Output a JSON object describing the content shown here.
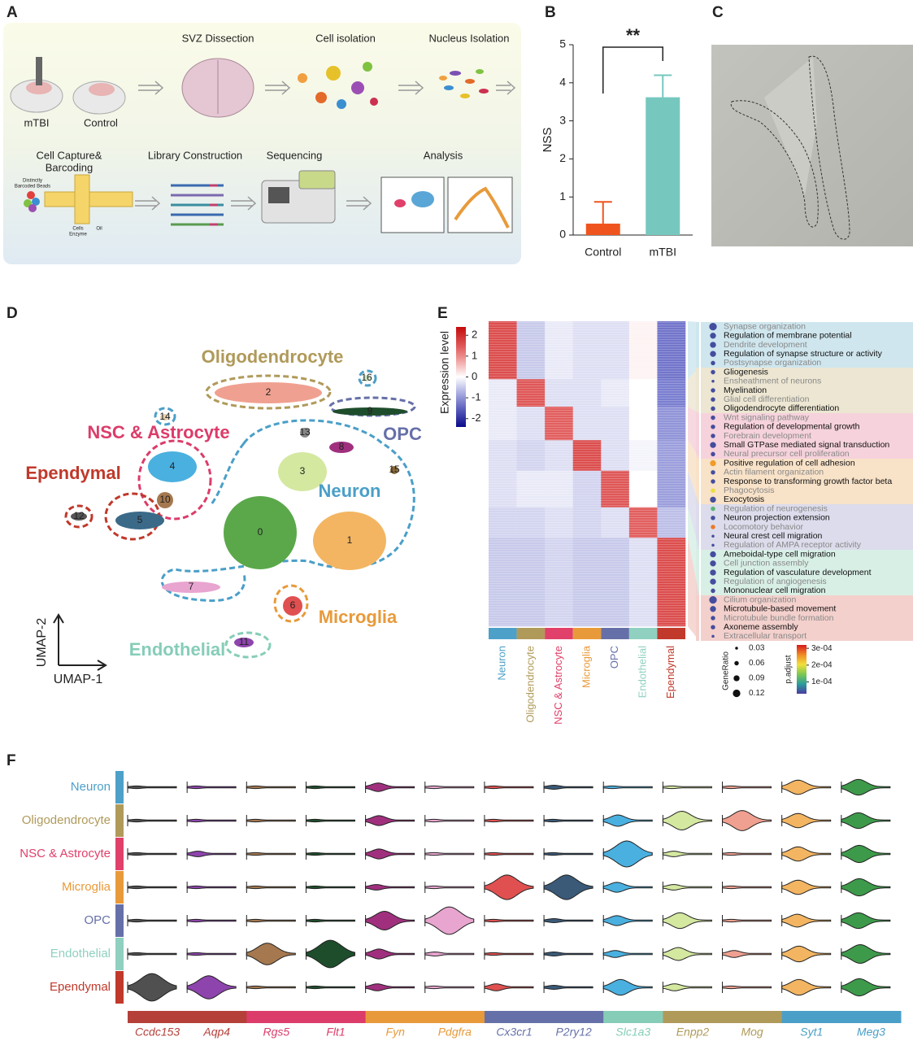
{
  "panel_labels": [
    "A",
    "B",
    "C",
    "D",
    "E",
    "F"
  ],
  "panel_a": {
    "groups": [
      "mTBI",
      "Control"
    ],
    "steps": [
      "SVZ Dissection",
      "Cell isolation",
      "Nucleus Isolation",
      "Library Construction",
      "Sequencing",
      "Analysis"
    ],
    "capture_title": [
      "Cell Capture&",
      "Barcoding"
    ],
    "chip_labels": [
      "Distinctly",
      "Barcoded Beads",
      "Cells",
      "Enzyme",
      "Oil"
    ]
  },
  "umap": {
    "x_label": "UMAP-1",
    "y_label": "UMAP-2",
    "clusters": [
      "0",
      "1",
      "2",
      "3",
      "4",
      "5",
      "6",
      "7",
      "8",
      "9",
      "10",
      "11",
      "12",
      "13",
      "14",
      "15",
      "16"
    ],
    "annotations": [
      {
        "text": "Oligodendrocyte",
        "color": "#b09a5a"
      },
      {
        "text": "NSC & Astrocyte",
        "color": "#dc3c6a"
      },
      {
        "text": "Ependymal",
        "color": "#c0392b"
      },
      {
        "text": "OPC",
        "color": "#6670a8"
      },
      {
        "text": "Neuron",
        "color": "#4a9fc8"
      },
      {
        "text": "Microglia",
        "color": "#e89a3a"
      },
      {
        "text": "Endothelial",
        "color": "#86cdb8"
      }
    ]
  },
  "chart_data": [
    {
      "type": "bar",
      "categories": [
        "Control",
        "mTBI"
      ],
      "values": [
        0.3,
        3.62
      ],
      "errors": [
        0.57,
        0.58
      ],
      "colors": [
        "#f0541e",
        "#76c8bf"
      ],
      "y_label": "NSS",
      "ylim": [
        0,
        5
      ],
      "yticks": [
        0,
        1,
        2,
        3,
        4,
        5
      ],
      "significance": "**"
    },
    {
      "type": "heatmap",
      "colorbar_label": "Expression level",
      "categories": [
        "Neuron",
        "Oligodendrocyte",
        "NSC & Astrocyte",
        "Microglia",
        "OPC",
        "Endothelial",
        "Ependymal"
      ],
      "colors": [
        "#4da0c8",
        "#b09a5a",
        "#e0406a",
        "#e89a3a",
        "#6670a8",
        "#8fd0c0",
        "#c0392b"
      ],
      "values": [
        [
          1.6,
          -0.5,
          -0.2,
          -0.3,
          -0.3,
          0.1,
          -1.3
        ],
        [
          -0.2,
          1.5,
          -0.3,
          -0.3,
          -0.2,
          0,
          -1.2
        ],
        [
          -0.2,
          -0.3,
          1.4,
          -0.3,
          -0.3,
          0,
          -1.0
        ],
        [
          -0.3,
          -0.4,
          -0.3,
          1.6,
          -0.3,
          -0.1,
          -0.9
        ],
        [
          -0.3,
          -0.2,
          -0.2,
          -0.4,
          1.5,
          0,
          -0.9
        ],
        [
          -0.4,
          -0.4,
          -0.3,
          -0.4,
          -0.3,
          1.4,
          -0.6
        ],
        [
          -0.5,
          -0.5,
          -0.4,
          -0.5,
          -0.5,
          -0.3,
          1.6
        ]
      ],
      "clim": [
        -2.4,
        2.4
      ],
      "cticks": [
        2,
        1,
        0,
        -1,
        -2
      ],
      "terms": [
        "Synapse organization",
        "Regulation of membrane potential",
        "Dendrite development",
        "Regulation of synapse structure or activity",
        "Postsynapse organization",
        "Gliogenesis",
        "Ensheathment of neurons",
        "Myelination",
        "Glial cell differentiation",
        "Oligodendrocyte differentiation",
        "Wnt signaling pathway",
        "Regulation of developmental growth",
        "Forebrain development",
        "Small GTPase mediated signal transduction",
        "Neural precursor cell proliferation",
        "Positive regulation of cell adhesion",
        "Actin filament organization",
        "Response to transforming growth factor beta",
        "Phagocytosis",
        "Exocytosis",
        "Regulation of neurogenesis",
        "Neuron projection extension",
        "Locomotory behavior",
        "Neural crest cell migration",
        "Regulation of AMPA receptor activity",
        "Ameboidal-type cell migration",
        "Cell junction assembly",
        "Regulation of vasculature development",
        "Regulation of angiogenesis",
        "Mononuclear cell migration",
        "Cilium organization",
        "Microtubule-based movement",
        "Microtubule bundle formation",
        "Axoneme assembly",
        "Extracellular transport"
      ],
      "gene_ratio": [
        0.12,
        0.09,
        0.09,
        0.09,
        0.06,
        0.06,
        0.03,
        0.06,
        0.06,
        0.06,
        0.06,
        0.06,
        0.06,
        0.09,
        0.06,
        0.09,
        0.06,
        0.06,
        0.06,
        0.09,
        0.06,
        0.06,
        0.06,
        0.03,
        0.03,
        0.09,
        0.09,
        0.09,
        0.09,
        0.06,
        0.12,
        0.09,
        0.06,
        0.06,
        0.03
      ],
      "p_adjust": [
        4e-05,
        4e-05,
        4e-05,
        4e-05,
        4e-05,
        4e-05,
        4e-05,
        4e-05,
        4e-05,
        4e-05,
        4e-05,
        4e-05,
        4e-05,
        4e-05,
        4e-05,
        0.00025,
        4e-05,
        4e-05,
        0.0002,
        4e-05,
        0.00012,
        4e-05,
        0.00027,
        4e-05,
        4e-05,
        4e-05,
        4e-05,
        4e-05,
        4e-05,
        4e-05,
        4e-05,
        4e-05,
        4e-05,
        4e-05,
        4e-05
      ],
      "size_legend_title": "GeneRatio",
      "size_ticks": [
        0.03,
        0.06,
        0.09,
        0.12
      ],
      "color_legend_title": "p.adjust",
      "color_lim": [
        3e-05,
        0.00032
      ],
      "color_ticks": [
        {
          "value": 0.0003,
          "label": "3e-04"
        },
        {
          "value": 0.0002,
          "label": "2e-04"
        },
        {
          "value": 0.0001,
          "label": "1e-04"
        }
      ]
    },
    {
      "type": "violin",
      "categories": [
        "Neuron",
        "Oligodendrocyte",
        "NSC & Astrocyte",
        "Microglia",
        "OPC",
        "Endothelial",
        "Ependymal"
      ],
      "category_colors": [
        "#4da0c8",
        "#b09a5a",
        "#e0406a",
        "#e89a3a",
        "#6670a8",
        "#8fd0c0",
        "#c0392b"
      ],
      "series": [
        {
          "name": "Ccdc153",
          "color": "#505050",
          "label_color": "#b5403a",
          "values": [
            0.05,
            0.05,
            0.05,
            0.05,
            0.05,
            0.05,
            0.9
          ]
        },
        {
          "name": "Aqp4",
          "color": "#8e44ad",
          "label_color": "#b5403a",
          "values": [
            0.05,
            0.05,
            0.15,
            0.05,
            0.05,
            0.05,
            0.75
          ]
        },
        {
          "name": "Rgs5",
          "color": "#a5784f",
          "label_color": "#dc3c6a",
          "values": [
            0.05,
            0.05,
            0.05,
            0.05,
            0.05,
            0.7,
            0.05
          ]
        },
        {
          "name": "Flt1",
          "color": "#1e4d2b",
          "label_color": "#dc3c6a",
          "values": [
            0.05,
            0.05,
            0.05,
            0.05,
            0.05,
            0.9,
            0.05
          ]
        },
        {
          "name": "Fyn",
          "color": "#a0307e",
          "label_color": "#e89a3a",
          "values": [
            0.25,
            0.3,
            0.3,
            0.15,
            0.6,
            0.3,
            0.2
          ]
        },
        {
          "name": "Pdgfra",
          "color": "#e8a5cf",
          "label_color": "#e89a3a",
          "values": [
            0.05,
            0.05,
            0.05,
            0.05,
            0.9,
            0.1,
            0.05
          ]
        },
        {
          "name": "Cx3cr1",
          "color": "#e05050",
          "label_color": "#6670a8",
          "values": [
            0.05,
            0.05,
            0.05,
            0.8,
            0.05,
            0.05,
            0.2
          ]
        },
        {
          "name": "P2ry12",
          "color": "#3a5a78",
          "label_color": "#6670a8",
          "values": [
            0.1,
            0.05,
            0.05,
            0.8,
            0.1,
            0.1,
            0.1
          ]
        },
        {
          "name": "Slc1a3",
          "color": "#4ab0e0",
          "label_color": "#86cdb8",
          "values": [
            0.05,
            0.35,
            0.85,
            0.3,
            0.3,
            0.2,
            0.5
          ]
        },
        {
          "name": "Enpp2",
          "color": "#d4e8a0",
          "label_color": "#b09a5a",
          "values": [
            0.05,
            0.6,
            0.15,
            0.15,
            0.5,
            0.4,
            0.2
          ]
        },
        {
          "name": "Mog",
          "color": "#f0a090",
          "label_color": "#b09a5a",
          "values": [
            0.05,
            0.65,
            0.05,
            0.05,
            0.05,
            0.2,
            0.05
          ]
        },
        {
          "name": "Syt1",
          "color": "#f3b562",
          "label_color": "#4a9fc8",
          "values": [
            0.45,
            0.45,
            0.45,
            0.45,
            0.4,
            0.5,
            0.5
          ]
        },
        {
          "name": "Meg3",
          "color": "#3d9a4a",
          "label_color": "#4a9fc8",
          "values": [
            0.5,
            0.5,
            0.55,
            0.55,
            0.5,
            0.6,
            0.55
          ]
        }
      ]
    }
  ]
}
